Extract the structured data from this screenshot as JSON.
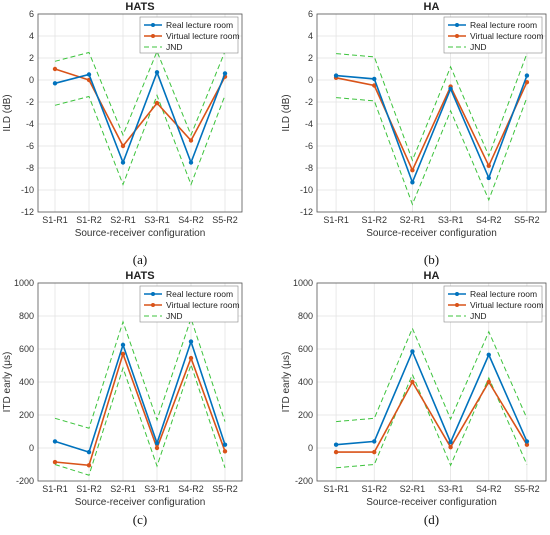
{
  "colors": {
    "real": "#0072BD",
    "virtual": "#D95319",
    "jnd": "#3CC33C"
  },
  "chart_data": [
    {
      "id": "a",
      "type": "line",
      "title": "HATS",
      "subfigure_label": "(a)",
      "xlabel": "Source-receiver configuration",
      "ylabel": "ILD (dB)",
      "categories": [
        "S1-R1",
        "S1-R2",
        "S2-R1",
        "S3-R1",
        "S4-R2",
        "S5-R2"
      ],
      "ylim": [
        -12,
        6
      ],
      "yticks": [
        "6",
        "4",
        "2",
        "0",
        "-2",
        "-4",
        "-6",
        "-8",
        "-10",
        "-12"
      ],
      "ytick_values": [
        6,
        4,
        2,
        0,
        -2,
        -4,
        -6,
        -8,
        -10,
        -12
      ],
      "grid": true,
      "legend": "top-right",
      "series": [
        {
          "name": "Real lecture room",
          "values": [
            -0.3,
            0.5,
            -7.5,
            0.7,
            -7.5,
            0.6
          ]
        },
        {
          "name": "Virtual lecture room",
          "values": [
            1.0,
            0.0,
            -6.0,
            -2.1,
            -5.5,
            0.3
          ]
        },
        {
          "name": "JND",
          "values": [
            1.7,
            2.5,
            -5.0,
            2.6,
            -5.0,
            2.6
          ]
        },
        {
          "name": "",
          "values": [
            -2.3,
            -1.5,
            -9.5,
            -1.4,
            -9.5,
            -1.4
          ]
        }
      ]
    },
    {
      "id": "b",
      "type": "line",
      "title": "HA",
      "subfigure_label": "(b)",
      "xlabel": "Source-receiver configuration",
      "ylabel": "ILD (dB)",
      "categories": [
        "S1-R1",
        "S1-R2",
        "S2-R1",
        "S3-R1",
        "S4-R2",
        "S5-R2"
      ],
      "ylim": [
        -12,
        6
      ],
      "yticks": [
        "6",
        "4",
        "2",
        "0",
        "-2",
        "-4",
        "-6",
        "-8",
        "-10",
        "-12"
      ],
      "ytick_values": [
        6,
        4,
        2,
        0,
        -2,
        -4,
        -6,
        -8,
        -10,
        -12
      ],
      "grid": true,
      "legend": "top-right",
      "series": [
        {
          "name": "Real lecture room",
          "values": [
            0.4,
            0.1,
            -9.3,
            -0.8,
            -8.9,
            0.4
          ]
        },
        {
          "name": "Virtual lecture room",
          "values": [
            0.2,
            -0.5,
            -8.2,
            -0.6,
            -7.8,
            -0.2
          ]
        },
        {
          "name": "JND",
          "values": [
            2.4,
            2.1,
            -7.3,
            1.2,
            -6.9,
            2.4
          ]
        },
        {
          "name": "",
          "values": [
            -1.6,
            -1.9,
            -11.3,
            -2.8,
            -10.9,
            -1.6
          ]
        }
      ]
    },
    {
      "id": "c",
      "type": "line",
      "title": "HATS",
      "subfigure_label": "(c)",
      "xlabel": "Source-receiver configuration",
      "ylabel": "ITD early (μs)",
      "categories": [
        "S1-R1",
        "S1-R2",
        "S2-R1",
        "S3-R1",
        "S4-R2",
        "S5-R2"
      ],
      "ylim": [
        -200,
        1000
      ],
      "yticks": [
        "1000",
        "800",
        "600",
        "400",
        "200",
        "0",
        "-200"
      ],
      "ytick_values": [
        1000,
        800,
        600,
        400,
        200,
        0,
        -200
      ],
      "grid": true,
      "legend": "top-right",
      "series": [
        {
          "name": "Real lecture room",
          "values": [
            40,
            -25,
            625,
            30,
            645,
            20
          ]
        },
        {
          "name": "Virtual lecture room",
          "values": [
            -85,
            -105,
            570,
            0,
            545,
            -20
          ]
        },
        {
          "name": "JND",
          "values": [
            180,
            120,
            765,
            170,
            785,
            160
          ]
        },
        {
          "name": "",
          "values": [
            -100,
            -165,
            485,
            -110,
            505,
            -120
          ]
        }
      ]
    },
    {
      "id": "d",
      "type": "line",
      "title": "HA",
      "subfigure_label": "(d)",
      "xlabel": "Source-receiver configuration",
      "ylabel": "ITD early (μs)",
      "categories": [
        "S1-R1",
        "S1-R2",
        "S2-R1",
        "S3-R1",
        "S4-R2",
        "S5-R2"
      ],
      "ylim": [
        -200,
        1000
      ],
      "yticks": [
        "1000",
        "800",
        "600",
        "400",
        "200",
        "0",
        "-200"
      ],
      "ytick_values": [
        1000,
        800,
        600,
        400,
        200,
        0,
        -200
      ],
      "grid": true,
      "legend": "top-right",
      "series": [
        {
          "name": "Real lecture room",
          "values": [
            20,
            40,
            585,
            35,
            565,
            40
          ]
        },
        {
          "name": "Virtual lecture room",
          "values": [
            -25,
            -25,
            400,
            5,
            400,
            20
          ]
        },
        {
          "name": "JND",
          "values": [
            160,
            180,
            725,
            175,
            705,
            180
          ]
        },
        {
          "name": "",
          "values": [
            -120,
            -100,
            445,
            -105,
            425,
            -100
          ]
        }
      ]
    }
  ]
}
